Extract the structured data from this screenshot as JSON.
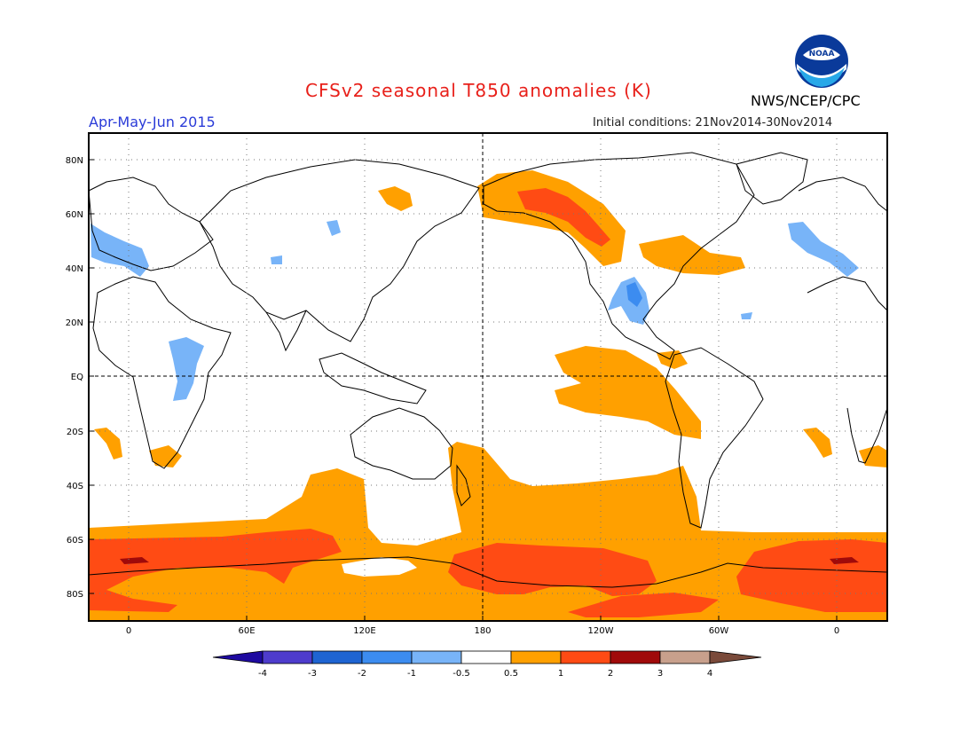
{
  "header": {
    "title": "CFSv2 seasonal T850 anomalies (K)",
    "agency": "NWS/NCEP/CPC",
    "logo_text": "NOAA",
    "season": "Apr-May-Jun 2015",
    "initial_conditions": "Initial conditions: 21Nov2014-30Nov2014"
  },
  "map": {
    "lat_labels": [
      "80N",
      "60N",
      "40N",
      "20N",
      "EQ",
      "20S",
      "40S",
      "60S",
      "80S"
    ],
    "lon_labels": [
      "0",
      "60E",
      "120E",
      "180",
      "120W",
      "60W",
      "0"
    ]
  },
  "colorbar": {
    "labels": [
      "-4",
      "-3",
      "-2",
      "-1",
      "-0.5",
      "0.5",
      "1",
      "2",
      "3",
      "4"
    ],
    "colors": [
      "#1e0aa0",
      "#4e3ccc",
      "#1e64d2",
      "#3c8cf0",
      "#78b4f8",
      "#ffffff",
      "#ffa000",
      "#ff4b14",
      "#a00a0a",
      "#c8a08c",
      "#7a4a3a"
    ]
  }
}
